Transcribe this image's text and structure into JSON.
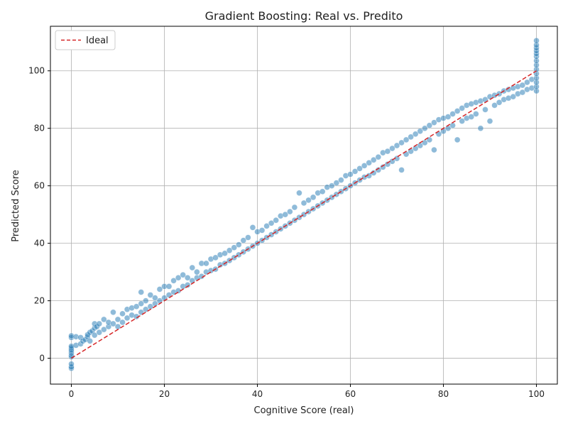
{
  "chart_data": {
    "type": "scatter",
    "title": "Gradient Boosting: Real vs. Predito",
    "xlabel": "Cognitive Score (real)",
    "ylabel": "Predicted Score",
    "xlim": [
      -4.5,
      104.5
    ],
    "ylim": [
      -9,
      115.5
    ],
    "xticks": [
      0,
      20,
      40,
      60,
      80,
      100
    ],
    "yticks": [
      0,
      20,
      40,
      60,
      80,
      100
    ],
    "xtick_labels": [
      "0",
      "20",
      "40",
      "60",
      "80",
      "100"
    ],
    "ytick_labels": [
      "0",
      "20",
      "40",
      "60",
      "80",
      "100"
    ],
    "grid": true,
    "legend": {
      "placement": "top-left",
      "entries": [
        "Ideal"
      ]
    },
    "series": [
      {
        "type": "scatter",
        "color": "#1f77b4",
        "alpha": 0.5,
        "points": [
          [
            0,
            -3.5
          ],
          [
            0,
            -3
          ],
          [
            0,
            -2
          ],
          [
            0,
            0.5
          ],
          [
            0,
            1
          ],
          [
            0,
            1.8
          ],
          [
            0,
            2.5
          ],
          [
            0,
            3
          ],
          [
            0,
            3.6
          ],
          [
            0,
            4.2
          ],
          [
            0,
            7.2
          ],
          [
            0,
            7.8
          ],
          [
            1,
            4.5
          ],
          [
            1,
            7.5
          ],
          [
            2,
            5
          ],
          [
            2,
            7.2
          ],
          [
            2.5,
            6
          ],
          [
            3,
            6.5
          ],
          [
            3.5,
            7.5
          ],
          [
            3.5,
            8.2
          ],
          [
            4,
            6
          ],
          [
            4,
            9
          ],
          [
            4.5,
            9.5
          ],
          [
            5,
            8
          ],
          [
            5,
            10.5
          ],
          [
            5,
            12
          ],
          [
            5.5,
            11
          ],
          [
            6,
            9
          ],
          [
            6,
            12
          ],
          [
            7,
            10
          ],
          [
            7,
            13.5
          ],
          [
            8,
            11
          ],
          [
            8,
            12.5
          ],
          [
            9,
            12
          ],
          [
            9,
            16
          ],
          [
            10,
            11
          ],
          [
            10,
            13.5
          ],
          [
            11,
            12.5
          ],
          [
            11,
            15.5
          ],
          [
            12,
            14
          ],
          [
            12,
            17
          ],
          [
            13,
            15
          ],
          [
            13,
            17.5
          ],
          [
            14,
            14.5
          ],
          [
            14,
            18
          ],
          [
            15,
            16
          ],
          [
            15,
            19
          ],
          [
            15,
            23
          ],
          [
            16,
            17
          ],
          [
            16,
            20
          ],
          [
            17,
            18
          ],
          [
            17,
            22
          ],
          [
            18,
            19
          ],
          [
            18,
            21
          ],
          [
            19,
            20
          ],
          [
            19,
            24
          ],
          [
            20,
            21
          ],
          [
            20,
            25
          ],
          [
            21,
            22
          ],
          [
            21,
            25
          ],
          [
            22,
            23
          ],
          [
            22,
            27
          ],
          [
            23,
            23.5
          ],
          [
            23,
            28
          ],
          [
            24,
            25
          ],
          [
            24,
            29
          ],
          [
            25,
            25.5
          ],
          [
            25,
            28
          ],
          [
            26,
            27
          ],
          [
            26,
            31.5
          ],
          [
            27,
            28
          ],
          [
            27,
            30
          ],
          [
            28,
            28.5
          ],
          [
            28,
            33
          ],
          [
            29,
            30
          ],
          [
            29,
            33
          ],
          [
            30,
            30.5
          ],
          [
            30,
            34.5
          ],
          [
            31,
            31
          ],
          [
            31,
            35
          ],
          [
            32,
            32.5
          ],
          [
            32,
            36
          ],
          [
            33,
            33
          ],
          [
            33,
            36.5
          ],
          [
            34,
            34
          ],
          [
            34,
            37.5
          ],
          [
            35,
            35
          ],
          [
            35,
            38.5
          ],
          [
            36,
            36
          ],
          [
            36,
            39.5
          ],
          [
            37,
            37
          ],
          [
            37,
            41
          ],
          [
            38,
            38
          ],
          [
            38,
            42
          ],
          [
            39,
            39
          ],
          [
            39,
            45.5
          ],
          [
            40,
            40
          ],
          [
            40,
            44
          ],
          [
            41,
            41
          ],
          [
            41,
            44.5
          ],
          [
            42,
            42
          ],
          [
            42,
            46
          ],
          [
            43,
            43
          ],
          [
            43,
            47
          ],
          [
            44,
            44
          ],
          [
            44,
            48
          ],
          [
            45,
            45
          ],
          [
            45,
            49.5
          ],
          [
            46,
            46
          ],
          [
            46,
            50
          ],
          [
            47,
            47
          ],
          [
            47,
            51
          ],
          [
            48,
            48
          ],
          [
            48,
            52.5
          ],
          [
            49,
            49
          ],
          [
            49,
            57.5
          ],
          [
            50,
            50
          ],
          [
            50,
            54
          ],
          [
            51,
            51
          ],
          [
            51,
            55
          ],
          [
            52,
            52
          ],
          [
            52,
            56
          ],
          [
            53,
            53
          ],
          [
            53,
            57.5
          ],
          [
            54,
            54
          ],
          [
            54,
            58
          ],
          [
            55,
            55
          ],
          [
            55,
            59.5
          ],
          [
            56,
            56
          ],
          [
            56,
            60
          ],
          [
            57,
            57
          ],
          [
            57,
            61
          ],
          [
            58,
            58
          ],
          [
            58,
            62
          ],
          [
            59,
            59
          ],
          [
            59,
            63.5
          ],
          [
            60,
            60
          ],
          [
            60,
            64
          ],
          [
            61,
            61
          ],
          [
            61,
            65
          ],
          [
            62,
            62
          ],
          [
            62,
            66
          ],
          [
            63,
            63
          ],
          [
            63,
            67
          ],
          [
            64,
            63.5
          ],
          [
            64,
            68
          ],
          [
            65,
            64.5
          ],
          [
            65,
            69
          ],
          [
            66,
            65.5
          ],
          [
            66,
            70
          ],
          [
            67,
            66.5
          ],
          [
            67,
            71.5
          ],
          [
            68,
            67.5
          ],
          [
            68,
            72
          ],
          [
            69,
            68.5
          ],
          [
            69,
            73
          ],
          [
            70,
            69.5
          ],
          [
            70,
            74
          ],
          [
            71,
            65.5
          ],
          [
            71,
            75
          ],
          [
            72,
            71
          ],
          [
            72,
            76
          ],
          [
            73,
            72
          ],
          [
            73,
            77
          ],
          [
            74,
            73
          ],
          [
            74,
            78
          ],
          [
            75,
            74
          ],
          [
            75,
            79
          ],
          [
            76,
            75
          ],
          [
            76,
            80
          ],
          [
            77,
            76
          ],
          [
            77,
            81
          ],
          [
            78,
            72.5
          ],
          [
            78,
            82
          ],
          [
            79,
            78
          ],
          [
            79,
            83
          ],
          [
            80,
            79
          ],
          [
            80,
            83.5
          ],
          [
            81,
            80
          ],
          [
            81,
            84
          ],
          [
            82,
            81
          ],
          [
            82,
            85
          ],
          [
            83,
            76
          ],
          [
            83,
            86
          ],
          [
            84,
            82.5
          ],
          [
            84,
            87
          ],
          [
            85,
            83.5
          ],
          [
            85,
            88
          ],
          [
            86,
            84
          ],
          [
            86,
            88.5
          ],
          [
            87,
            85
          ],
          [
            87,
            89
          ],
          [
            88,
            80
          ],
          [
            88,
            89.5
          ],
          [
            89,
            86.5
          ],
          [
            89,
            90
          ],
          [
            90,
            82.5
          ],
          [
            90,
            91
          ],
          [
            91,
            88
          ],
          [
            91,
            91.5
          ],
          [
            92,
            89
          ],
          [
            92,
            92
          ],
          [
            93,
            90
          ],
          [
            93,
            93
          ],
          [
            94,
            90.5
          ],
          [
            94,
            93.5
          ],
          [
            95,
            91
          ],
          [
            95,
            94
          ],
          [
            96,
            92
          ],
          [
            96,
            94.5
          ],
          [
            97,
            92.5
          ],
          [
            97,
            95
          ],
          [
            98,
            93.5
          ],
          [
            98,
            96
          ],
          [
            99,
            94
          ],
          [
            99,
            97
          ],
          [
            100,
            93
          ],
          [
            100,
            94.5
          ],
          [
            100,
            96
          ],
          [
            100,
            97.5
          ],
          [
            100,
            99
          ],
          [
            100,
            100.5
          ],
          [
            100,
            102
          ],
          [
            100,
            103.5
          ],
          [
            100,
            105
          ],
          [
            100,
            106
          ],
          [
            100,
            107
          ],
          [
            100,
            108
          ],
          [
            100,
            109
          ],
          [
            100,
            110.5
          ]
        ]
      },
      {
        "type": "line",
        "name": "Ideal",
        "color": "#d62728",
        "style": "dashed",
        "x": [
          0,
          100
        ],
        "y": [
          0,
          100
        ]
      }
    ]
  }
}
